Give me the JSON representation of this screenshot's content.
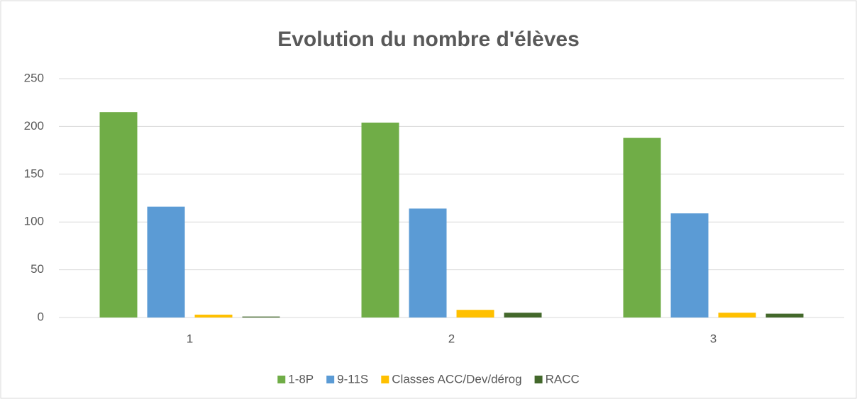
{
  "chart_data": {
    "type": "bar",
    "title": "Evolution du nombre d'élèves",
    "categories": [
      "1",
      "2",
      "3"
    ],
    "series": [
      {
        "name": "1-8P",
        "color": "#70ad47",
        "values": [
          215,
          204,
          188
        ]
      },
      {
        "name": "9-11S",
        "color": "#5b9bd5",
        "values": [
          116,
          114,
          109
        ]
      },
      {
        "name": "Classes ACC/Dev/dérog",
        "color": "#ffc000",
        "values": [
          3,
          8,
          5
        ]
      },
      {
        "name": "RACC",
        "color": "#43682b",
        "values": [
          1,
          5,
          4
        ]
      }
    ],
    "ylim": [
      0,
      250
    ],
    "yticks": [
      0,
      50,
      100,
      150,
      200,
      250
    ],
    "grid": true,
    "legend": "bottom"
  }
}
